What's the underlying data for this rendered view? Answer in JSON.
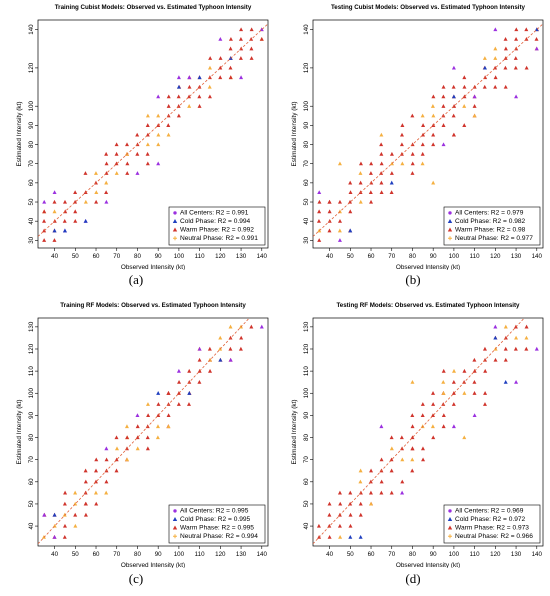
{
  "figure": {
    "captions": [
      "(a)",
      "(b)",
      "(c)",
      "(d)"
    ]
  },
  "colors": {
    "all": "#9b30e0",
    "cold": "#1f3fbf",
    "warm": "#d0342c",
    "neutral": "#f5b041",
    "diagonal": "#e0603a"
  },
  "chart_data": [
    {
      "type": "scatter",
      "title": "Training Cubist Models: Observed vs. Estimated Typhoon Intensity",
      "xlabel": "Observed Intensity (kt)",
      "ylabel": "Estimated Intensity (kt)",
      "xlim": [
        32,
        143
      ],
      "ylim": [
        26,
        145
      ],
      "xticks": [
        40,
        50,
        60,
        70,
        80,
        90,
        100,
        110,
        120,
        130,
        140
      ],
      "yticks": [
        30,
        40,
        50,
        60,
        70,
        80,
        90,
        100,
        120,
        140
      ],
      "ytick_labels": [
        "30",
        "40",
        "50",
        "60",
        "70",
        "80",
        "90",
        "100",
        "120",
        "140"
      ],
      "legend_position": "bottom-right",
      "legend": [
        "All Centers: R2 = 0.991",
        "Cold Phase: R2 = 0.994",
        "Warm Phase: R2 = 0.992",
        "Neutral Phase: R2 = 0.991"
      ],
      "series_names": [
        "all",
        "cold",
        "warm",
        "neutral"
      ],
      "outliers": {
        "all": [
          [
            35,
            50
          ],
          [
            40,
            55
          ],
          [
            45,
            35
          ],
          [
            55,
            40
          ],
          [
            65,
            50
          ],
          [
            80,
            65
          ],
          [
            90,
            70
          ],
          [
            100,
            115
          ],
          [
            105,
            115
          ],
          [
            120,
            135
          ],
          [
            130,
            115
          ],
          [
            140,
            140
          ],
          [
            90,
            105
          ]
        ],
        "cold": [
          [
            40,
            35
          ],
          [
            45,
            35
          ],
          [
            55,
            40
          ],
          [
            110,
            115
          ],
          [
            125,
            125
          ],
          [
            100,
            110
          ]
        ],
        "warm": [
          [
            35,
            45
          ],
          [
            85,
            70
          ],
          [
            125,
            115
          ],
          [
            140,
            135
          ]
        ],
        "neutral": [
          [
            75,
            75
          ],
          [
            95,
            85
          ],
          [
            115,
            120
          ]
        ]
      },
      "band": {
        "x_start": 35,
        "x_end": 140,
        "step": 5,
        "half_width": 10
      }
    },
    {
      "type": "scatter",
      "title": "Testing Cubist Models: Observed vs. Estimated Typhoon Intensity",
      "xlabel": "Observed Intensity (kt)",
      "ylabel": "Estimated Intensity (kt)",
      "xlim": [
        32,
        143
      ],
      "ylim": [
        26,
        145
      ],
      "xticks": [
        40,
        50,
        60,
        70,
        80,
        90,
        100,
        110,
        120,
        130,
        140
      ],
      "yticks": [
        30,
        40,
        50,
        60,
        70,
        80,
        90,
        100,
        120,
        140
      ],
      "ytick_labels": [
        "30",
        "40",
        "50",
        "60",
        "70",
        "80",
        "90",
        "100",
        "120",
        "140"
      ],
      "legend_position": "bottom-right",
      "legend": [
        "All Centers: R2 = 0.979",
        "Cold Phase: R2 = 0.982",
        "Warm Phase: R2 = 0.98",
        "Neutral Phase: R2 = 0.977"
      ],
      "series_names": [
        "all",
        "cold",
        "warm",
        "neutral"
      ],
      "outliers": {
        "all": [
          [
            35,
            55
          ],
          [
            45,
            30
          ],
          [
            100,
            120
          ],
          [
            110,
            105
          ],
          [
            130,
            105
          ],
          [
            140,
            130
          ],
          [
            95,
            80
          ],
          [
            120,
            140
          ]
        ],
        "cold": [
          [
            50,
            35
          ],
          [
            100,
            105
          ],
          [
            115,
            120
          ],
          [
            140,
            140
          ],
          [
            70,
            60
          ]
        ],
        "warm": [
          [
            40,
            50
          ],
          [
            80,
            65
          ],
          [
            100,
            85
          ],
          [
            125,
            110
          ]
        ],
        "neutral": [
          [
            45,
            70
          ],
          [
            65,
            85
          ],
          [
            90,
            60
          ],
          [
            110,
            95
          ],
          [
            120,
            130
          ]
        ]
      },
      "band": {
        "x_start": 35,
        "x_end": 140,
        "step": 5,
        "half_width": 15
      }
    },
    {
      "type": "scatter",
      "title": "Training RF Models: Observed vs. Estimated Typhoon Intensity",
      "xlabel": "Observed Intensity (kt)",
      "ylabel": "Estimated Intensity (kt)",
      "xlim": [
        32,
        143
      ],
      "ylim": [
        31,
        134
      ],
      "xticks": [
        40,
        50,
        60,
        70,
        80,
        90,
        100,
        110,
        120,
        130,
        140
      ],
      "yticks": [
        40,
        50,
        60,
        70,
        80,
        90,
        100,
        110,
        120,
        130
      ],
      "ytick_labels": [
        "40",
        "50",
        "60",
        "70",
        "80",
        "90",
        "100",
        "110",
        "120",
        "130"
      ],
      "legend_position": "bottom-right",
      "legend": [
        "All Centers: R2 = 0.995",
        "Cold Phase: R2 = 0.995",
        "Warm Phase: R2 = 0.995",
        "Neutral Phase: R2 = 0.994"
      ],
      "series_names": [
        "all",
        "cold",
        "warm",
        "neutral"
      ],
      "outliers": {
        "all": [
          [
            35,
            45
          ],
          [
            40,
            35
          ],
          [
            65,
            75
          ],
          [
            80,
            90
          ],
          [
            100,
            110
          ],
          [
            110,
            120
          ],
          [
            125,
            115
          ],
          [
            140,
            130
          ]
        ],
        "cold": [
          [
            40,
            45
          ],
          [
            90,
            100
          ],
          [
            105,
            100
          ],
          [
            120,
            115
          ]
        ],
        "warm": [
          [
            55,
            50
          ],
          [
            75,
            80
          ],
          [
            95,
            100
          ]
        ],
        "neutral": [
          [
            95,
            85
          ],
          [
            75,
            70
          ],
          [
            115,
            115
          ]
        ]
      },
      "band": {
        "x_start": 35,
        "x_end": 140,
        "step": 5,
        "half_width": 10
      }
    },
    {
      "type": "scatter",
      "title": "Testing RF Models: Observed vs. Estimated Typhoon Intensity",
      "xlabel": "Observed Intensity (kt)",
      "ylabel": "Estimated Intensity (kt)",
      "xlim": [
        32,
        143
      ],
      "ylim": [
        31,
        134
      ],
      "xticks": [
        40,
        50,
        60,
        70,
        80,
        90,
        100,
        110,
        120,
        130,
        140
      ],
      "yticks": [
        40,
        50,
        60,
        70,
        80,
        90,
        100,
        110,
        120,
        130
      ],
      "ytick_labels": [
        "40",
        "50",
        "60",
        "70",
        "80",
        "90",
        "100",
        "110",
        "120",
        "130"
      ],
      "legend_position": "bottom-right",
      "legend": [
        "All Centers: R2 = 0.969",
        "Cold Phase: R2 = 0.972",
        "Warm Phase: R2 = 0.973",
        "Neutral Phase: R2 = 0.966"
      ],
      "series_names": [
        "all",
        "cold",
        "warm",
        "neutral"
      ],
      "outliers": {
        "all": [
          [
            65,
            85
          ],
          [
            75,
            55
          ],
          [
            100,
            85
          ],
          [
            110,
            90
          ],
          [
            120,
            130
          ],
          [
            140,
            120
          ],
          [
            130,
            105
          ]
        ],
        "cold": [
          [
            50,
            35
          ],
          [
            55,
            35
          ],
          [
            125,
            105
          ],
          [
            120,
            125
          ]
        ],
        "warm": [
          [
            45,
            55
          ],
          [
            80,
            75
          ],
          [
            115,
            95
          ]
        ],
        "neutral": [
          [
            80,
            105
          ],
          [
            60,
            50
          ],
          [
            95,
            100
          ],
          [
            105,
            80
          ]
        ]
      },
      "band": {
        "x_start": 35,
        "x_end": 140,
        "step": 5,
        "half_width": 15
      }
    }
  ]
}
